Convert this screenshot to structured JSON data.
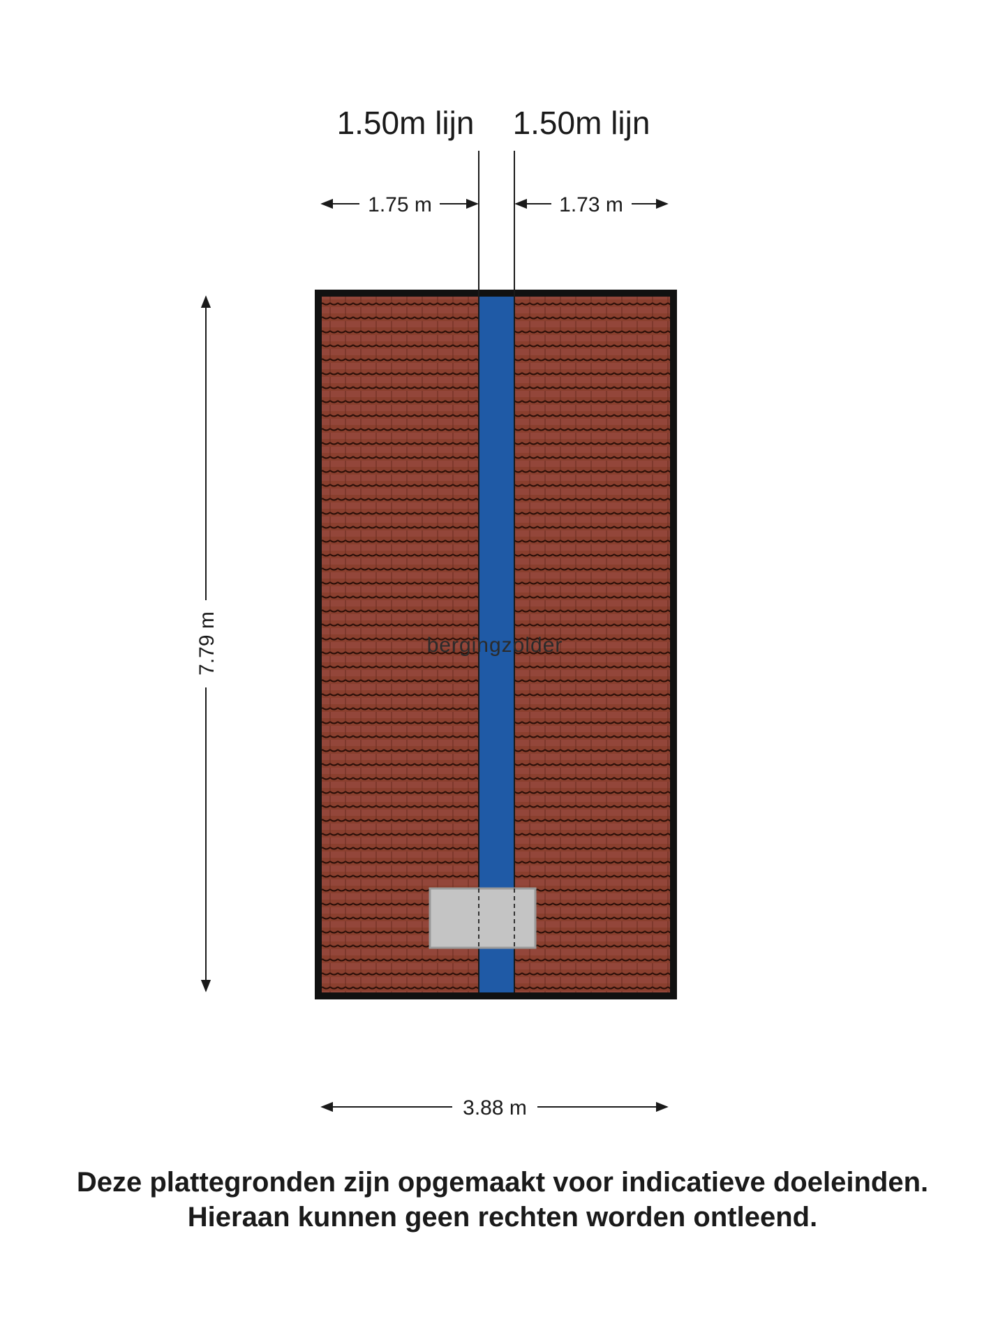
{
  "plan": {
    "room_label": "bergingzolder",
    "line_left_label": "1.50m lijn",
    "line_right_label": "1.50m lijn",
    "dim_left": "1.75 m",
    "dim_right": "1.73 m",
    "dim_height": "7.79 m",
    "dim_width": "3.88 m"
  },
  "colors": {
    "wall": "#111111",
    "roof_tile": "#8a3f2e",
    "tile_line": "#2a0f08",
    "ridge_strip": "#1f5aa6",
    "skylight": "#c4c4c4"
  },
  "disclaimer": {
    "line1": "Deze plattegronden zijn opgemaakt voor indicatieve doeleinden.",
    "line2": "Hieraan kunnen geen rechten worden ontleend."
  }
}
